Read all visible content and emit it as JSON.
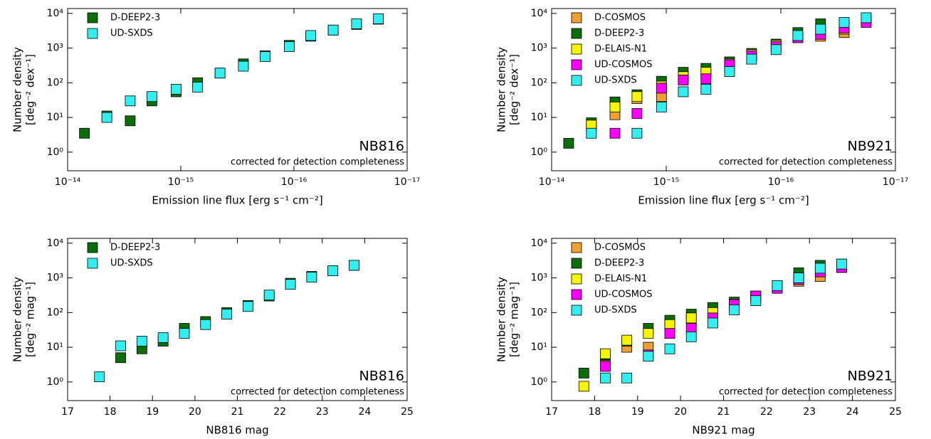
{
  "chart_data": [
    {
      "type": "scatter",
      "xlabel": "Emission line flux [erg s⁻¹  cm⁻²]",
      "ylabel": [
        "Number density",
        "[deg⁻² dex⁻¹]"
      ],
      "annotations": [
        "NB816",
        "corrected for detection completeness"
      ],
      "log_x": true,
      "log_y": true,
      "legend": "upper left",
      "xlim": [
        1e-14,
        1e-17
      ],
      "xticks": [
        {
          "value": 1e-14,
          "label": "10⁻¹⁴"
        },
        {
          "value": 1e-15,
          "label": "10⁻¹⁵"
        },
        {
          "value": 1e-16,
          "label": "10⁻¹⁶"
        },
        {
          "value": 1e-17,
          "label": "10⁻¹⁷"
        }
      ],
      "ylim": [
        0.29,
        13800
      ],
      "yticks": [
        {
          "value": 1,
          "label": "10⁰"
        },
        {
          "value": 10,
          "label": "10¹"
        },
        {
          "value": 100,
          "label": "10²"
        },
        {
          "value": 1000,
          "label": "10³"
        },
        {
          "value": 10000,
          "label": "10⁴"
        }
      ],
      "x": [
        7.1e-15,
        4.5e-15,
        2.8e-15,
        1.8e-15,
        1.1e-15,
        7.1e-16,
        4.5e-16,
        2.8e-16,
        1.8e-16,
        1.1e-16,
        7.1e-17,
        4.5e-17,
        2.8e-17,
        1.8e-17
      ],
      "series": [
        {
          "name": "D-DEEP2-3",
          "color": "#0b6e0b",
          "values": [
            3.5,
            11,
            8,
            30,
            55,
            100,
            190,
            350,
            600,
            1200,
            2200,
            3300,
            4800,
            6800
          ]
        },
        {
          "name": "UD-SXDS",
          "color": "#33eeee",
          "values": [
            null,
            10,
            30,
            40,
            65,
            75,
            190,
            300,
            570,
            1100,
            2300,
            3300,
            5000,
            7000
          ]
        }
      ]
    },
    {
      "type": "scatter",
      "xlabel": "Emission line flux [erg s⁻¹  cm⁻²]",
      "ylabel": [
        "Number density",
        "[deg⁻² dex⁻¹]"
      ],
      "annotations": [
        "NB921",
        "corrected for detection completeness"
      ],
      "log_x": true,
      "log_y": true,
      "legend": "upper left",
      "xlim": [
        1e-14,
        1e-17
      ],
      "xticks": [
        {
          "value": 1e-14,
          "label": "10⁻¹⁴"
        },
        {
          "value": 1e-15,
          "label": "10⁻¹⁵"
        },
        {
          "value": 1e-16,
          "label": "10⁻¹⁶"
        },
        {
          "value": 1e-17,
          "label": "10⁻¹⁷"
        }
      ],
      "ylim": [
        0.29,
        13800
      ],
      "yticks": [
        {
          "value": 1,
          "label": "10⁰"
        },
        {
          "value": 10,
          "label": "10¹"
        },
        {
          "value": 100,
          "label": "10²"
        },
        {
          "value": 1000,
          "label": "10³"
        },
        {
          "value": 10000,
          "label": "10⁴"
        }
      ],
      "x": [
        7.1e-15,
        4.5e-15,
        2.8e-15,
        1.8e-15,
        1.1e-15,
        7.1e-16,
        4.5e-16,
        2.8e-16,
        1.8e-16,
        1.1e-16,
        7.1e-17,
        4.5e-17,
        2.8e-17,
        1.8e-17
      ],
      "series": [
        {
          "name": "D-COSMOS",
          "color": "#f0a030",
          "values": [
            null,
            5,
            12,
            35,
            40,
            130,
            180,
            280,
            600,
            1200,
            2000,
            2200,
            2800,
            6000
          ]
        },
        {
          "name": "D-DEEP2-3",
          "color": "#0b6e0b",
          "values": [
            1.8,
            7,
            28,
            45,
            110,
            200,
            260,
            400,
            700,
            1300,
            2800,
            5000,
            4800,
            7000
          ]
        },
        {
          "name": "D-ELAIS-N1",
          "color": "#f5f500",
          "values": [
            null,
            6,
            20,
            40,
            80,
            150,
            200,
            350,
            650,
            1200,
            2200,
            3000,
            3500,
            6500
          ]
        },
        {
          "name": "UD-COSMOS",
          "color": "#ff00ff",
          "values": [
            null,
            null,
            3.5,
            13,
            70,
            120,
            130,
            330,
            600,
            1100,
            2000,
            2500,
            3800,
            5500
          ]
        },
        {
          "name": "UD-SXDS",
          "color": "#33eeee",
          "values": [
            null,
            3.5,
            null,
            3.5,
            20,
            55,
            65,
            210,
            480,
            900,
            2300,
            3500,
            5500,
            7500
          ]
        }
      ]
    },
    {
      "type": "scatter",
      "xlabel": "NB816 mag",
      "ylabel": [
        "Number density",
        "[deg⁻² mag⁻¹]"
      ],
      "annotations": [
        "NB816",
        "corrected for detection completeness"
      ],
      "log_x": false,
      "log_y": true,
      "legend": "upper left",
      "xlim": [
        17,
        25
      ],
      "xticks": [
        17,
        18,
        19,
        20,
        21,
        22,
        23,
        24,
        25
      ],
      "ylim": [
        0.29,
        13800
      ],
      "yticks": [
        {
          "value": 1,
          "label": "10⁰"
        },
        {
          "value": 10,
          "label": "10¹"
        },
        {
          "value": 100,
          "label": "10²"
        },
        {
          "value": 1000,
          "label": "10³"
        },
        {
          "value": 10000,
          "label": "10⁴"
        }
      ],
      "x": [
        17.75,
        18.25,
        18.75,
        19.25,
        19.75,
        20.25,
        20.75,
        21.25,
        21.75,
        22.25,
        22.75,
        23.25,
        23.75
      ],
      "series": [
        {
          "name": "D-DEEP2-3",
          "color": "#0b6e0b",
          "values": [
            null,
            5,
            9,
            15,
            35,
            55,
            100,
            160,
            300,
            700,
            1100,
            1600,
            2300
          ]
        },
        {
          "name": "UD-SXDS",
          "color": "#33eeee",
          "values": [
            1.4,
            11,
            15,
            19,
            25,
            45,
            90,
            150,
            320,
            650,
            1050,
            1600,
            2300
          ]
        }
      ]
    },
    {
      "type": "scatter",
      "xlabel": "NB921 mag",
      "ylabel": [
        "Number density",
        "[deg⁻² mag⁻¹]"
      ],
      "annotations": [
        "NB921",
        "corrected for detection completeness"
      ],
      "log_x": false,
      "log_y": true,
      "legend": "upper left",
      "xlim": [
        17,
        25
      ],
      "xticks": [
        17,
        18,
        19,
        20,
        21,
        22,
        23,
        24,
        25
      ],
      "ylim": [
        0.29,
        13800
      ],
      "yticks": [
        {
          "value": 1,
          "label": "10⁰"
        },
        {
          "value": 10,
          "label": "10¹"
        },
        {
          "value": 100,
          "label": "10²"
        },
        {
          "value": 1000,
          "label": "10³"
        },
        {
          "value": 10000,
          "label": "10⁴"
        }
      ],
      "x": [
        17.75,
        18.25,
        18.75,
        19.25,
        19.75,
        20.25,
        20.75,
        21.25,
        21.75,
        22.25,
        22.75,
        23.25,
        23.75
      ],
      "series": [
        {
          "name": "D-COSMOS",
          "color": "#f0a030",
          "values": [
            null,
            3,
            10,
            10,
            40,
            60,
            100,
            180,
            280,
            550,
            800,
            1100,
            2000
          ]
        },
        {
          "name": "D-DEEP2-3",
          "color": "#0b6e0b",
          "values": [
            1.8,
            6,
            15,
            35,
            60,
            90,
            140,
            200,
            300,
            600,
            1400,
            2300,
            2500
          ]
        },
        {
          "name": "D-ELAIS-N1",
          "color": "#f5f500",
          "values": [
            0.75,
            6.5,
            16,
            25,
            45,
            70,
            100,
            170,
            280,
            600,
            900,
            1500,
            2200
          ]
        },
        {
          "name": "UD-COSMOS",
          "color": "#ff00ff",
          "values": [
            null,
            2.8,
            null,
            6,
            25,
            35,
            70,
            170,
            300,
            500,
            900,
            1500,
            2000
          ]
        },
        {
          "name": "UD-SXDS",
          "color": "#33eeee",
          "values": [
            null,
            1.3,
            1.3,
            5.5,
            9,
            20,
            50,
            120,
            220,
            600,
            1000,
            1900,
            2500
          ]
        }
      ]
    }
  ]
}
